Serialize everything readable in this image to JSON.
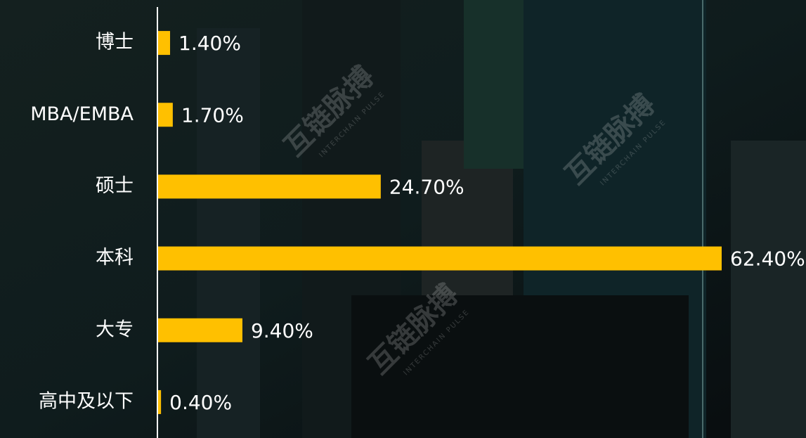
{
  "chart_data": {
    "type": "bar",
    "orientation": "horizontal",
    "categories": [
      "博士",
      "MBA/EMBA",
      "硕士",
      "本科",
      "大专",
      "高中及以下"
    ],
    "values": [
      1.4,
      1.7,
      24.7,
      62.4,
      9.4,
      0.4
    ],
    "value_labels": [
      "1.40%",
      "1.70%",
      "24.70%",
      "62.40%",
      "9.40%",
      "0.40%"
    ],
    "color": "#ffc000"
  },
  "watermark": {
    "name": "互链脉搏",
    "sub": "INTERCHAIN PULSE"
  }
}
